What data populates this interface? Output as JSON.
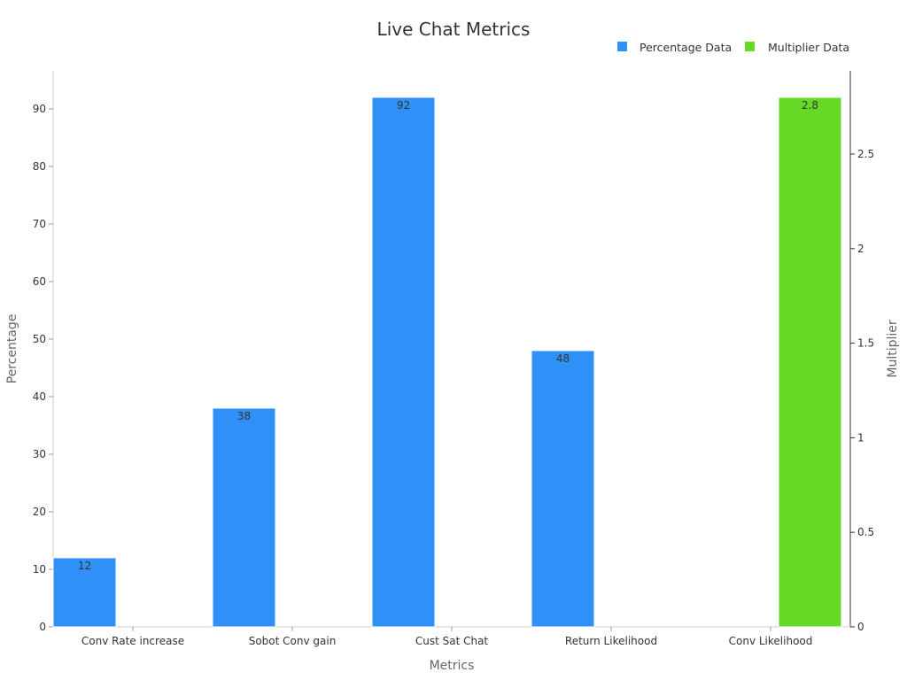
{
  "chart_data": {
    "type": "bar",
    "title": "Live Chat Metrics",
    "xlabel": "Metrics",
    "ylabel_left": "Percentage",
    "ylabel_right": "Multiplier",
    "categories": [
      "Conv Rate increase",
      "Sobot Conv gain",
      "Cust Sat Chat",
      "Return Likelihood",
      "Conv Likelihood"
    ],
    "ylim_left": [
      0,
      96.6
    ],
    "yticks_left": [
      0,
      10,
      20,
      30,
      40,
      50,
      60,
      70,
      80,
      90
    ],
    "ylim_right": [
      0,
      2.94
    ],
    "yticks_right": [
      0,
      0.5,
      1,
      1.5,
      2,
      2.5
    ],
    "legend_position": "top-right",
    "grid": false,
    "series": [
      {
        "name": "Percentage Data",
        "axis": "left",
        "color": "#2F91F7",
        "values": [
          12,
          38,
          92,
          48,
          null
        ],
        "labels": [
          "12",
          "38",
          "92",
          "48",
          ""
        ]
      },
      {
        "name": "Multiplier Data",
        "axis": "right",
        "color": "#66D926",
        "values": [
          null,
          null,
          null,
          null,
          2.8
        ],
        "labels": [
          "",
          "",
          "",
          "",
          "2.8"
        ]
      }
    ]
  }
}
